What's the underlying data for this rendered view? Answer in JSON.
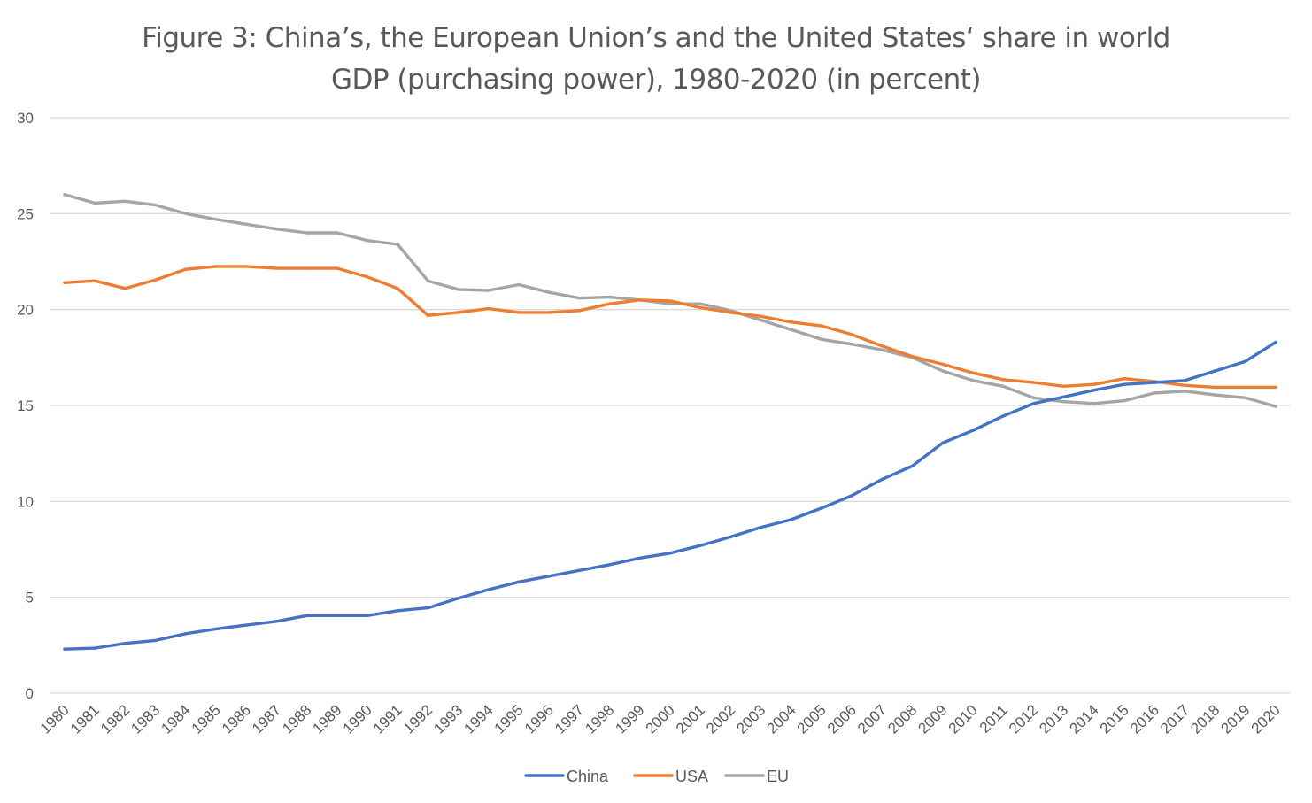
{
  "title": {
    "line1": "Figure 3: China’s, the European Union’s and the United States‘ share in world",
    "line2": "GDP (purchasing power), 1980-2020 (in percent)"
  },
  "chart_data": {
    "type": "line",
    "title": "Figure 3: China’s, the European Union’s and the United States‘ share in world GDP (purchasing power), 1980-2020 (in percent)",
    "xlabel": "",
    "ylabel": "",
    "ylim": [
      0,
      30
    ],
    "yticks": [
      0,
      5,
      10,
      15,
      20,
      25,
      30
    ],
    "grid": true,
    "legend_position": "bottom",
    "x": [
      "1980",
      "1981",
      "1982",
      "1983",
      "1984",
      "1985",
      "1986",
      "1987",
      "1988",
      "1989",
      "1990",
      "1991",
      "1992",
      "1993",
      "1994",
      "1995",
      "1996",
      "1997",
      "1998",
      "1999",
      "2000",
      "2001",
      "2002",
      "2003",
      "2004",
      "2005",
      "2006",
      "2007",
      "2008",
      "2009",
      "2010",
      "2011",
      "2012",
      "2013",
      "2014",
      "2015",
      "2016",
      "2017",
      "2018",
      "2019",
      "2020"
    ],
    "series": [
      {
        "name": "China",
        "color": "#4472C4",
        "values": [
          2.3,
          2.35,
          2.6,
          2.75,
          3.1,
          3.35,
          3.55,
          3.75,
          4.05,
          4.05,
          4.05,
          4.3,
          4.45,
          4.95,
          5.4,
          5.8,
          6.1,
          6.4,
          6.7,
          7.05,
          7.3,
          7.7,
          8.15,
          8.65,
          9.05,
          9.65,
          10.3,
          11.15,
          11.85,
          13.05,
          13.7,
          14.45,
          15.1,
          15.45,
          15.8,
          16.1,
          16.2,
          16.3,
          16.8,
          17.3,
          18.3
        ]
      },
      {
        "name": "USA",
        "color": "#ED7D31",
        "values": [
          21.4,
          21.5,
          21.1,
          21.55,
          22.1,
          22.25,
          22.25,
          22.15,
          22.15,
          22.15,
          21.7,
          21.1,
          19.7,
          19.85,
          20.05,
          19.85,
          19.85,
          19.95,
          20.3,
          20.5,
          20.45,
          20.1,
          19.85,
          19.65,
          19.35,
          19.15,
          18.7,
          18.1,
          17.55,
          17.15,
          16.7,
          16.35,
          16.2,
          16.0,
          16.1,
          16.4,
          16.25,
          16.05,
          15.95,
          15.95,
          15.95
        ]
      },
      {
        "name": "EU",
        "color": "#A5A5A5",
        "values": [
          26.0,
          25.55,
          25.65,
          25.45,
          25.0,
          24.7,
          24.45,
          24.2,
          24.0,
          24.0,
          23.6,
          23.4,
          21.5,
          21.05,
          21.0,
          21.3,
          20.9,
          20.6,
          20.65,
          20.5,
          20.3,
          20.3,
          19.95,
          19.45,
          18.95,
          18.45,
          18.2,
          17.9,
          17.5,
          16.8,
          16.3,
          16.0,
          15.4,
          15.2,
          15.1,
          15.25,
          15.65,
          15.75,
          15.55,
          15.4,
          14.95
        ]
      }
    ]
  }
}
